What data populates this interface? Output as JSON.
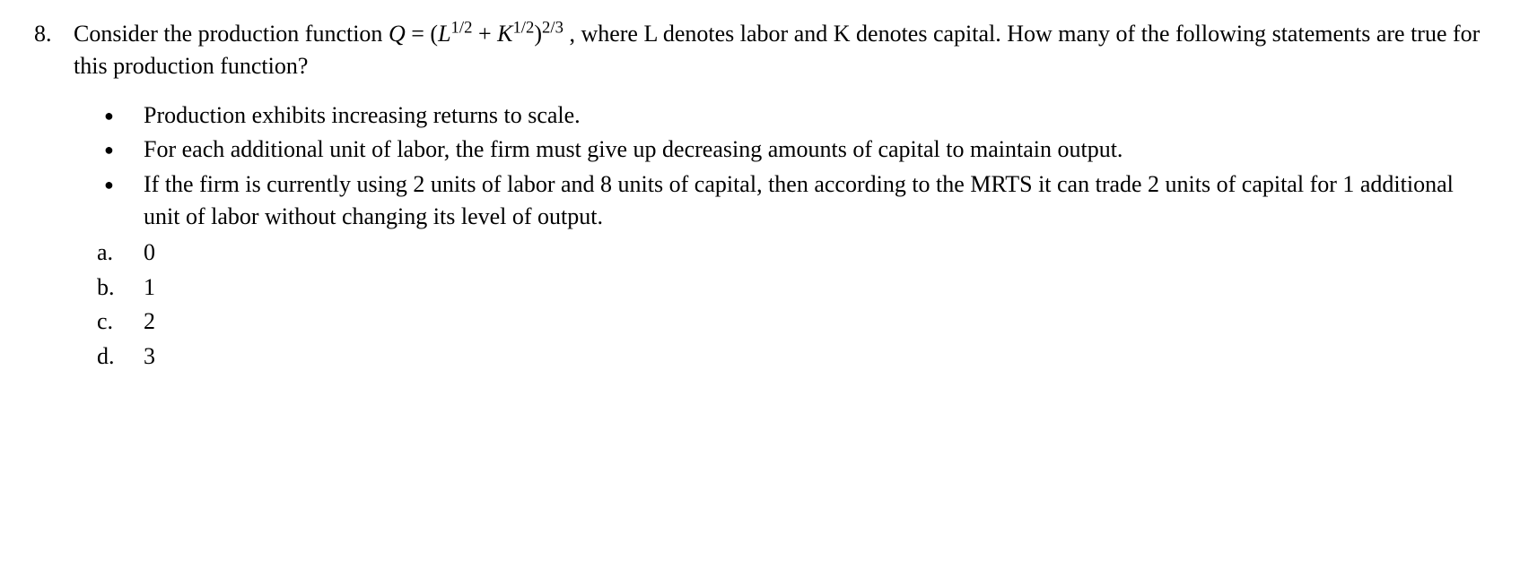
{
  "question": {
    "number": "8.",
    "text_before": "Consider the production function ",
    "equation_lhs": "Q",
    "equation_eq": " = ",
    "equation_open": "(",
    "equation_L": "L",
    "equation_exp1": "1/2",
    "equation_plus": " +  ",
    "equation_K": "K",
    "equation_exp2": "1/2",
    "equation_close": ")",
    "equation_exp3": "2/3",
    "text_after": " , where L denotes labor and K denotes capital.  How many of the following statements are true for this production function?"
  },
  "bullets": [
    "Production exhibits increasing returns to scale.",
    "For each additional unit of labor, the firm must give up decreasing amounts of capital to maintain output.",
    "If the firm is currently using 2 units of labor and 8 units of capital, then according to the MRTS it can trade 2 units of capital for 1 additional unit of labor without changing its level of output."
  ],
  "options": [
    {
      "letter": "a.",
      "value": "0"
    },
    {
      "letter": "b.",
      "value": "1"
    },
    {
      "letter": "c.",
      "value": "2"
    },
    {
      "letter": "d.",
      "value": "3"
    }
  ]
}
